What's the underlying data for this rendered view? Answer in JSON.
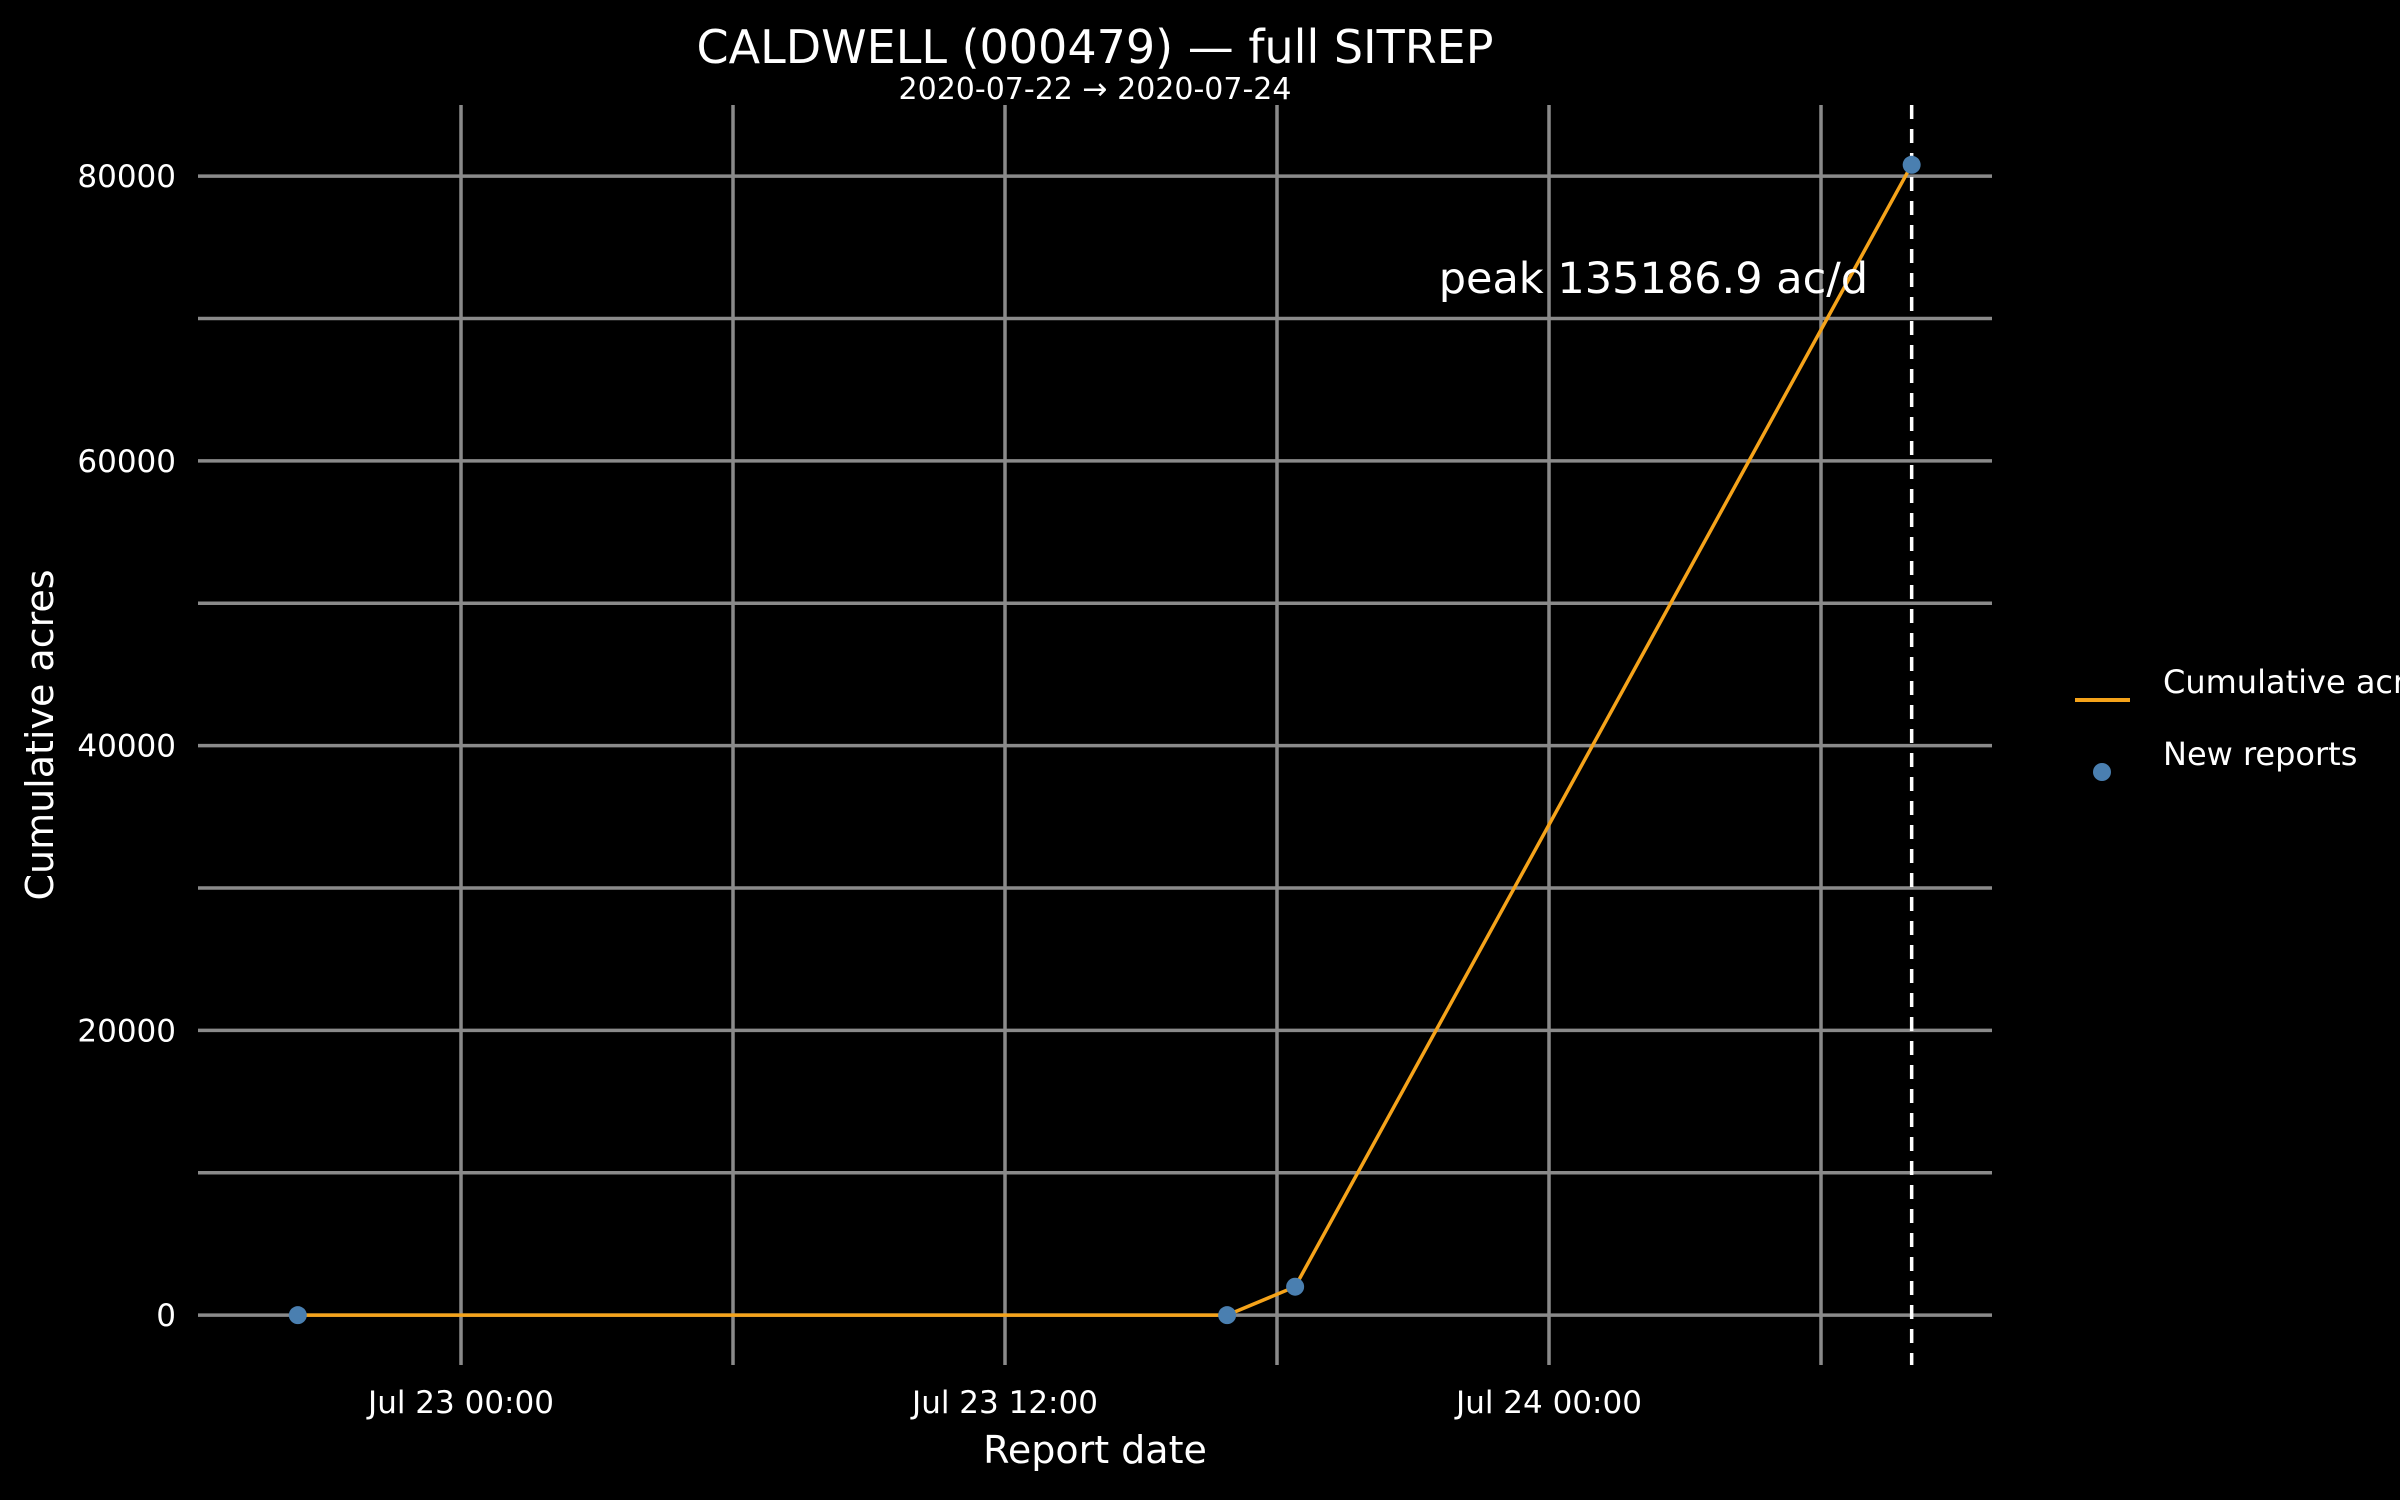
{
  "colors": {
    "background": "#000000",
    "line": "#f5a31a",
    "points": "#4a7fb0",
    "grid": "#8a8a8a",
    "text": "#ffffff"
  },
  "chart_data": {
    "type": "line",
    "title": "CALDWELL (000479) — full SITREP",
    "subtitle": "2020-07-22 → 2020-07-24",
    "xlabel": "Report date",
    "ylabel": "Cumulative acres",
    "x_tick_labels": [
      "Jul 23 00:00",
      "Jul 23 12:00",
      "Jul 24 00:00"
    ],
    "y_tick_labels": [
      "0",
      "20000",
      "40000",
      "60000",
      "80000"
    ],
    "ylim": [
      -3500,
      85000
    ],
    "grid": true,
    "legend_position": "right",
    "annotation": "peak 135186.9 ac/d",
    "marker_line_x": "2020-07-24 08:00",
    "series": [
      {
        "name": "Cumulative acres",
        "kind": "line",
        "x": [
          "2020-07-22 20:24",
          "2020-07-23 16:54",
          "2020-07-23 18:24",
          "2020-07-24 08:00"
        ],
        "y": [
          0,
          0,
          2000,
          80800
        ]
      },
      {
        "name": "New reports",
        "kind": "points",
        "x": [
          "2020-07-22 20:24",
          "2020-07-23 16:54",
          "2020-07-23 18:24",
          "2020-07-24 08:00"
        ],
        "y": [
          0,
          0,
          2000,
          80800
        ]
      }
    ]
  }
}
